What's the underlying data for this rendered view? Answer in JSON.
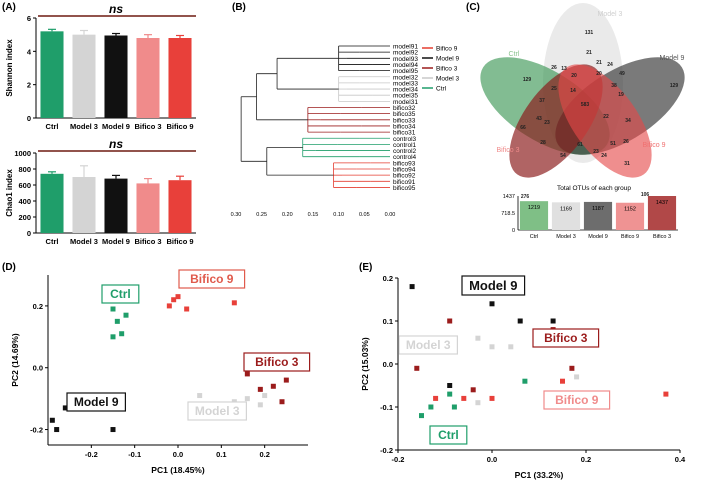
{
  "colors": {
    "ctrl": "#1f9e6a",
    "model3": "#d4d4d4",
    "model9": "#111111",
    "bifico3": "#f08b8b",
    "bifico9": "#e8403a",
    "bifico3_dark": "#9b1c1c",
    "bifico9_tree": "#e43d30",
    "model3_tree": "#c8c8c8",
    "sig_line": "#6e1a10"
  },
  "chart_data": [
    {
      "panel": "(A)",
      "type": "bar",
      "ylabel": "Shannon index",
      "annotation": "ns",
      "categories": [
        "Ctrl",
        "Model 3",
        "Model 9",
        "Bifico 3",
        "Bifico 9"
      ],
      "values": [
        5.2,
        5.0,
        4.95,
        4.8,
        4.8
      ],
      "errors": [
        0.12,
        0.25,
        0.12,
        0.2,
        0.15
      ],
      "ylim": [
        0,
        6
      ],
      "yticks": [
        "0",
        "2",
        "4",
        "6"
      ]
    },
    {
      "panel": "(A)",
      "type": "bar",
      "ylabel": "Chao1 index",
      "annotation": "ns",
      "categories": [
        "Ctrl",
        "Model 3",
        "Model 9",
        "Bifico 3",
        "Bifico 9"
      ],
      "values": [
        740,
        700,
        680,
        620,
        660
      ],
      "errors": [
        25,
        140,
        40,
        60,
        50
      ],
      "ylim": [
        0,
        1000
      ],
      "yticks": [
        "0",
        "200",
        "400",
        "600",
        "800",
        "1000"
      ]
    },
    {
      "panel": "(B)",
      "type": "dendrogram",
      "leaves": [
        "model91",
        "model92",
        "model93",
        "model94",
        "model95",
        "model32",
        "model33",
        "model34",
        "model35",
        "model31",
        "bifico32",
        "bifico35",
        "bifico33",
        "bifico34",
        "bifico31",
        "control3",
        "control1",
        "control2",
        "control4",
        "bifico93",
        "bifico94",
        "bifico92",
        "bifico91",
        "bifico95"
      ],
      "x_ticks": [
        "0.30",
        "0.25",
        "0.20",
        "0.15",
        "0.10",
        "0.05",
        "0.00"
      ],
      "legend": [
        "Bifico 9",
        "Model 9",
        "Bifico 3",
        "Model 3",
        "Ctrl"
      ]
    },
    {
      "panel": "(C)",
      "type": "venn",
      "set_labels": [
        "Model 3",
        "Ctrl",
        "Model 9",
        "Bifico 3",
        "Bifico 9"
      ],
      "numbers": [
        "131",
        "129",
        "129",
        "276",
        "106",
        "37",
        "21",
        "20",
        "49",
        "13",
        "20",
        "26",
        "24",
        "19",
        "583",
        "34",
        "66",
        "43",
        "28",
        "25",
        "14",
        "61",
        "51",
        "26",
        "31",
        "54",
        "24",
        "23",
        "21",
        "22",
        "38",
        "23"
      ],
      "inset": {
        "title": "Total OTUs of each group",
        "yticks": [
          "1437",
          "718.5",
          "0"
        ],
        "categories": [
          "Ctrl",
          "Model 3",
          "Model 9",
          "Bifico 9",
          "Bifico 3"
        ],
        "values": [
          1219,
          1169,
          1187,
          1152,
          1437
        ]
      }
    },
    {
      "panel": "(D)",
      "type": "scatter",
      "xlabel": "PC1 (18.45%)",
      "ylabel": "PC2 (14.69%)",
      "xlim": [
        -0.3,
        0.3
      ],
      "ylim": [
        -0.25,
        0.3
      ],
      "xticks": [
        "-0.2",
        "-0.1",
        "0.0",
        "0.1",
        "0.2"
      ],
      "yticks": [
        "0.2",
        "0.0",
        "-0.2"
      ],
      "series": [
        {
          "name": "Ctrl",
          "points": [
            [
              -0.15,
              0.19
            ],
            [
              -0.12,
              0.17
            ],
            [
              -0.14,
              0.15
            ],
            [
              -0.15,
              0.1
            ],
            [
              -0.13,
              0.11
            ]
          ]
        },
        {
          "name": "Bifico 9",
          "points": [
            [
              -0.02,
              0.2
            ],
            [
              -0.01,
              0.22
            ],
            [
              0.0,
              0.23
            ],
            [
              0.02,
              0.19
            ],
            [
              0.13,
              0.21
            ]
          ]
        },
        {
          "name": "Bifico 3",
          "points": [
            [
              0.16,
              -0.02
            ],
            [
              0.19,
              -0.07
            ],
            [
              0.22,
              -0.06
            ],
            [
              0.25,
              -0.04
            ],
            [
              0.24,
              -0.11
            ]
          ]
        },
        {
          "name": "Model 3",
          "points": [
            [
              0.05,
              -0.09
            ],
            [
              0.16,
              -0.1
            ],
            [
              0.19,
              -0.12
            ],
            [
              0.2,
              -0.09
            ],
            [
              0.13,
              -0.11
            ]
          ]
        },
        {
          "name": "Model 9",
          "points": [
            [
              -0.29,
              -0.17
            ],
            [
              -0.28,
              -0.2
            ],
            [
              -0.26,
              -0.13
            ],
            [
              -0.23,
              -0.09
            ],
            [
              -0.15,
              -0.2
            ]
          ]
        }
      ]
    },
    {
      "panel": "(E)",
      "type": "scatter",
      "xlabel": "PC1 (33.2%)",
      "ylabel": "PC2 (15.03%)",
      "xlim": [
        -0.2,
        0.4
      ],
      "ylim": [
        -0.2,
        0.2
      ],
      "xticks": [
        "-0.2",
        "0.0",
        "0.2",
        "0.4"
      ],
      "yticks": [
        "0.2",
        "0.1",
        "0.0",
        "-0.1",
        "-0.2"
      ],
      "series": [
        {
          "name": "Model 9",
          "points": [
            [
              -0.17,
              0.18
            ],
            [
              0.0,
              0.14
            ],
            [
              0.06,
              0.1
            ],
            [
              0.13,
              0.1
            ],
            [
              -0.09,
              -0.05
            ]
          ]
        },
        {
          "name": "Bifico 3",
          "points": [
            [
              -0.09,
              0.1
            ],
            [
              -0.16,
              -0.01
            ],
            [
              0.13,
              0.08
            ],
            [
              0.17,
              -0.01
            ],
            [
              -0.04,
              -0.06
            ]
          ]
        },
        {
          "name": "Model 3",
          "points": [
            [
              -0.03,
              0.06
            ],
            [
              0.0,
              0.04
            ],
            [
              0.04,
              0.04
            ],
            [
              0.18,
              -0.03
            ],
            [
              -0.03,
              -0.09
            ]
          ]
        },
        {
          "name": "Ctrl",
          "points": [
            [
              0.07,
              -0.04
            ],
            [
              -0.09,
              -0.07
            ],
            [
              -0.08,
              -0.1
            ],
            [
              -0.13,
              -0.1
            ],
            [
              -0.15,
              -0.12
            ]
          ]
        },
        {
          "name": "Bifico 9",
          "points": [
            [
              -0.06,
              -0.08
            ],
            [
              0.0,
              -0.08
            ],
            [
              0.15,
              -0.04
            ],
            [
              0.37,
              -0.07
            ],
            [
              -0.12,
              -0.08
            ]
          ]
        }
      ]
    }
  ],
  "group_labels": {
    "D": {
      "ctrl": "Ctrl",
      "bifico9": "Bifico 9",
      "bifico3": "Bifico 3",
      "model3": "Model 3",
      "model9": "Model 9"
    },
    "E": {
      "model9": "Model 9",
      "bifico3": "Bifico 3",
      "model3": "Model 3",
      "bifico9": "Bifico 9",
      "ctrl": "Ctrl"
    }
  }
}
